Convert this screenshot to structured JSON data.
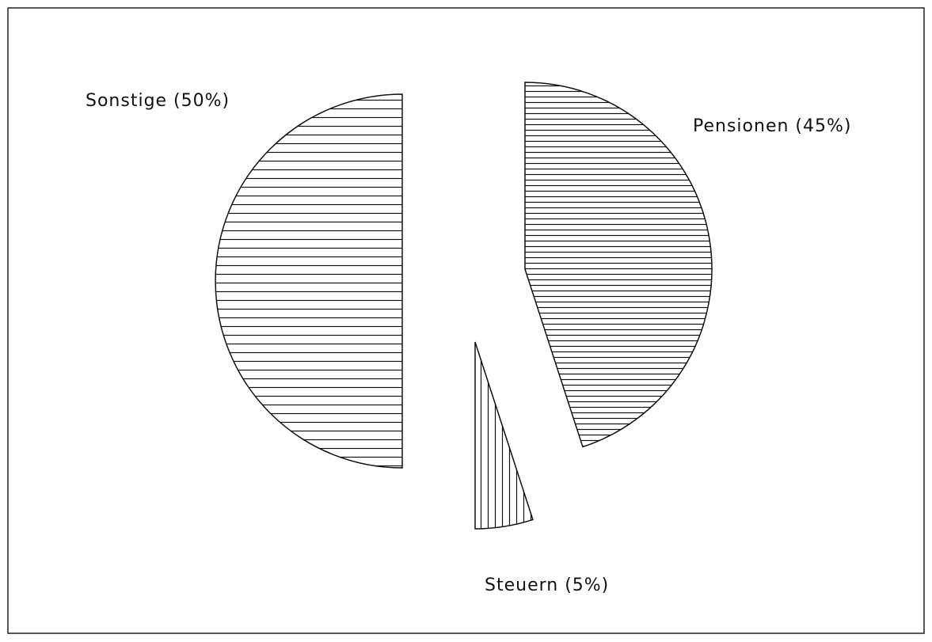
{
  "chart_data": {
    "type": "pie",
    "categories": [
      "Pensionen (45%)",
      "Steuern (5%)",
      "Sonstige (50%)"
    ],
    "values": [
      45,
      5,
      50
    ]
  }
}
